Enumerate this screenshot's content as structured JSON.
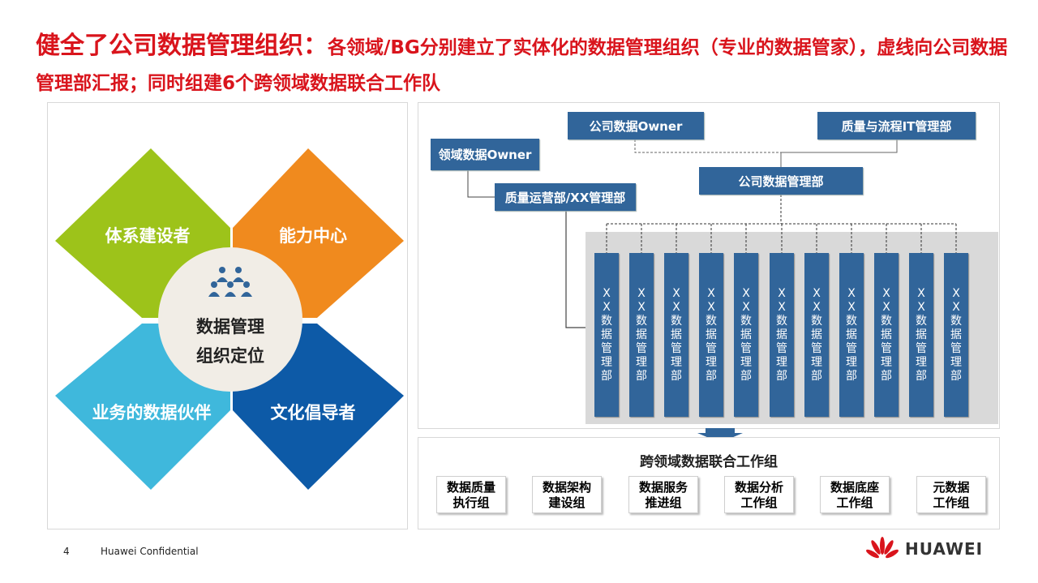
{
  "title": {
    "main": "健全了公司数据管理组织：",
    "sub": "各领域/BG分别建立了实体化的数据管理组织（专业的数据管家），虚线向公司数据管理部汇报；同时组建6个跨领域数据联合工作队"
  },
  "left": {
    "petals": [
      "体系建设者",
      "能力中心",
      "业务的数据伙伴",
      "文化倡导者"
    ],
    "center": [
      "数据管理",
      "组织定位"
    ],
    "icon": "people-group-icon"
  },
  "org": {
    "company_owner": "公司数据Owner",
    "quality_it": "质量与流程IT管理部",
    "domain_owner": "领域数据Owner",
    "company_mgmt": "公司数据管理部",
    "quality_ops": "质量运营部/XX管理部",
    "dept_label": "XX数据管理部",
    "dept_count": 11
  },
  "groups": {
    "title": "跨领域数据联合工作组",
    "items": [
      [
        "数据质量",
        "执行组"
      ],
      [
        "数据架构",
        "建设组"
      ],
      [
        "数据服务",
        "推进组"
      ],
      [
        "数据分析",
        "工作组"
      ],
      [
        "数据底座",
        "工作组"
      ],
      [
        "元数据",
        "工作组"
      ]
    ]
  },
  "footer": {
    "page": "4",
    "confidential": "Huawei Confidential",
    "brand": "HUAWEI"
  },
  "colors": {
    "red": "#d9141c",
    "box": "#31659a",
    "green": "#9dc31a",
    "orange": "#f08a1e",
    "lightblue": "#3fb8dc",
    "darkblue": "#0d5aa7"
  }
}
